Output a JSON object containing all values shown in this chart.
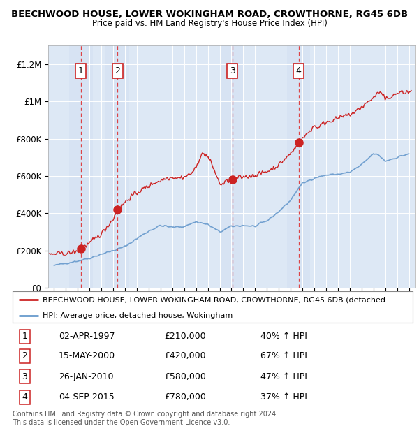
{
  "title1": "BEECHWOOD HOUSE, LOWER WOKINGHAM ROAD, CROWTHORNE, RG45 6DB",
  "title2": "Price paid vs. HM Land Registry's House Price Index (HPI)",
  "background_color": "#ffffff",
  "plot_bg_color": "#dde8f5",
  "purchase_dates": [
    1997.25,
    2000.37,
    2010.07,
    2015.67
  ],
  "purchase_prices": [
    210000,
    420000,
    580000,
    780000
  ],
  "purchase_labels": [
    "1",
    "2",
    "3",
    "4"
  ],
  "purchase_info": [
    {
      "num": "1",
      "date": "02-APR-1997",
      "price": "£210,000",
      "hpi": "40% ↑ HPI"
    },
    {
      "num": "2",
      "date": "15-MAY-2000",
      "price": "£420,000",
      "hpi": "67% ↑ HPI"
    },
    {
      "num": "3",
      "date": "26-JAN-2010",
      "price": "£580,000",
      "hpi": "47% ↑ HPI"
    },
    {
      "num": "4",
      "date": "04-SEP-2015",
      "price": "£780,000",
      "hpi": "37% ↑ HPI"
    }
  ],
  "legend_line1": "BEECHWOOD HOUSE, LOWER WOKINGHAM ROAD, CROWTHORNE, RG45 6DB (detached",
  "legend_line2": "HPI: Average price, detached house, Wokingham",
  "footer1": "Contains HM Land Registry data © Crown copyright and database right 2024.",
  "footer2": "This data is licensed under the Open Government Licence v3.0.",
  "red_line_color": "#cc2222",
  "blue_line_color": "#6699cc",
  "dashed_vline_color": "#dd3333",
  "xmin": 1994.5,
  "xmax": 2025.5,
  "ymin": 0,
  "ymax": 1300000,
  "yticks": [
    0,
    200000,
    400000,
    600000,
    800000,
    1000000,
    1200000
  ],
  "ytick_labels": [
    "£0",
    "£200K",
    "£400K",
    "£600K",
    "£800K",
    "£1M",
    "£1.2M"
  ]
}
